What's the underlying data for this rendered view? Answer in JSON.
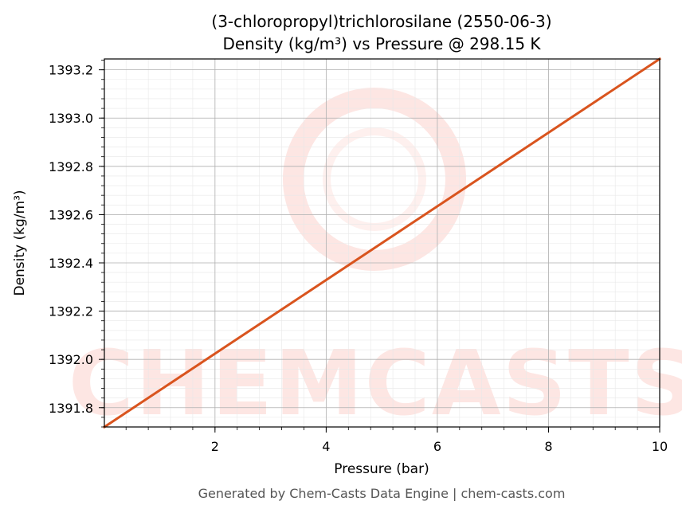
{
  "chart_data": {
    "type": "line",
    "title": "(3-chloropropyl)trichlorosilane (2550-06-3)",
    "subtitle": "Density (kg/m³) vs Pressure @ 298.15 K",
    "xlabel": "Pressure (bar)",
    "ylabel": "Density (kg/m³)",
    "xlim": [
      0.01,
      10
    ],
    "ylim": [
      1391.72,
      1393.245
    ],
    "x_ticks": [
      2,
      4,
      6,
      8,
      10
    ],
    "x_tick_labels": [
      "2",
      "4",
      "6",
      "8",
      "10"
    ],
    "y_ticks": [
      1391.8,
      1392.0,
      1392.2,
      1392.4,
      1392.6,
      1392.8,
      1393.0,
      1393.2
    ],
    "y_tick_labels": [
      "1391.8",
      "1392.0",
      "1392.2",
      "1392.4",
      "1392.6",
      "1392.8",
      "1393.0",
      "1393.2"
    ],
    "grid": true,
    "series": [
      {
        "color": "#d9541e",
        "x": [
          0.01,
          10
        ],
        "y": [
          1391.72,
          1393.245
        ]
      }
    ]
  },
  "watermark": {
    "text": "CHEMCASTS",
    "color": "#fde6e3"
  },
  "footer": "Generated by Chem-Casts Data Engine | chem-casts.com"
}
